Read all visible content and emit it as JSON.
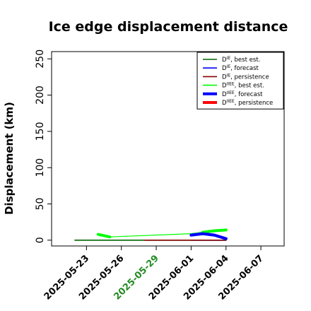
{
  "chart_data": {
    "type": "line",
    "title": "Ice edge displacement distance",
    "xlabel": "",
    "ylabel": "Displacement (km)",
    "x_range": [
      "2025-05-20",
      "2025-06-09"
    ],
    "ylim": [
      -8,
      260
    ],
    "y_ticks": [
      0,
      50,
      100,
      150,
      200,
      250
    ],
    "x_ticks": [
      {
        "label": "2025-05-23",
        "date": "2025-05-23",
        "color": "#000000"
      },
      {
        "label": "2025-05-26",
        "date": "2025-05-26",
        "color": "#000000"
      },
      {
        "label": "2025-05-29",
        "date": "2025-05-29",
        "color": "#228B22"
      },
      {
        "label": "2025-06-01",
        "date": "2025-06-01",
        "color": "#000000"
      },
      {
        "label": "2025-06-04",
        "date": "2025-06-04",
        "color": "#000000"
      },
      {
        "label": "2025-06-07",
        "date": "2025-06-07",
        "color": "#000000"
      }
    ],
    "grid": false,
    "legend_position": "top-right",
    "series": [
      {
        "name": "D^IE, best est.",
        "base": "D",
        "sup": "IE",
        "rest": ", best est.",
        "color": "#006400",
        "width": 1.6,
        "x": [
          "2025-05-22",
          "2025-06-04"
        ],
        "y": [
          0,
          0
        ]
      },
      {
        "name": "D^IE, forecast",
        "base": "D",
        "sup": "IE",
        "rest": ", forecast",
        "color": "#0000ff",
        "width": 1.6,
        "x": [
          "2025-06-01",
          "2025-06-04"
        ],
        "y": [
          0,
          0
        ]
      },
      {
        "name": "D^IE, persistence",
        "base": "D",
        "sup": "IE",
        "rest": ", persistence",
        "color": "#8b0000",
        "width": 1.6,
        "x": [
          "2025-05-28",
          "2025-06-04"
        ],
        "y": [
          0,
          0
        ]
      },
      {
        "name": "D^IIEE, best est.",
        "base": "D",
        "sup": "IIEE",
        "rest": ", best est.",
        "color": "#00ff00",
        "width": 1.2,
        "x": [
          "2025-05-24",
          "2025-05-25",
          "2025-06-01",
          "2025-06-02",
          "2025-06-03",
          "2025-06-04"
        ],
        "y": [
          8,
          4.5,
          9,
          11,
          13,
          14
        ]
      },
      {
        "name": "D^IIEE, forecast",
        "base": "D",
        "sup": "IIEE",
        "rest": ", forecast",
        "color": "#0000ff",
        "width": 4,
        "x": [
          "2025-06-01",
          "2025-06-02",
          "2025-06-03",
          "2025-06-04"
        ],
        "y": [
          7,
          9,
          7,
          2
        ]
      },
      {
        "name": "D^IIEE, persistence",
        "base": "D",
        "sup": "IIEE",
        "rest": ", persistence",
        "color": "#ff0000",
        "width": 4,
        "x": [],
        "y": []
      }
    ],
    "thick_segments": [
      {
        "series": 3,
        "x": [
          "2025-05-24",
          "2025-05-25"
        ],
        "y": [
          8,
          4.5
        ],
        "width": 4
      },
      {
        "series": 3,
        "x": [
          "2025-06-02",
          "2025-06-03",
          "2025-06-04"
        ],
        "y": [
          11,
          13,
          14
        ],
        "width": 4
      }
    ]
  }
}
